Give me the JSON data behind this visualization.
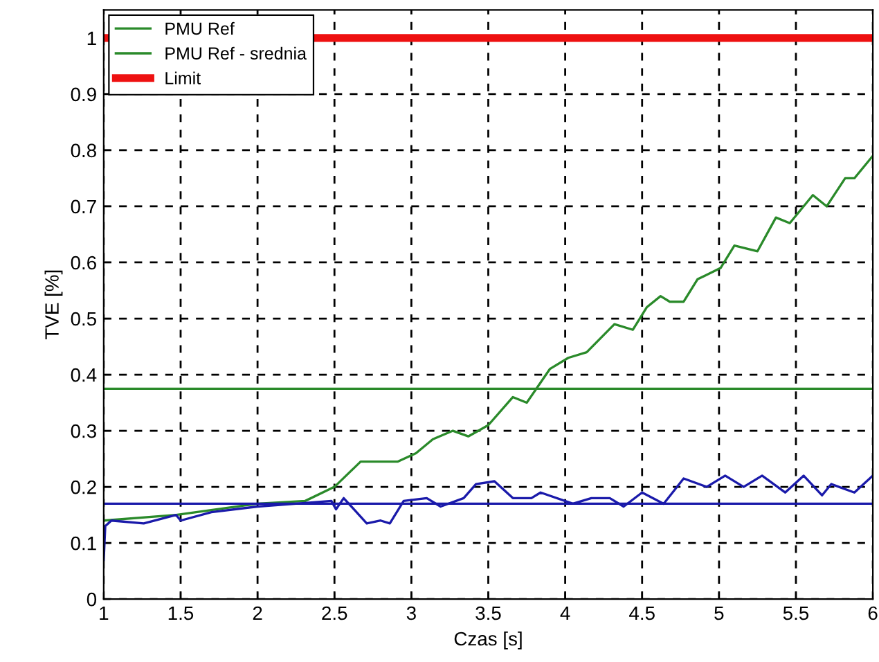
{
  "chart_data": {
    "type": "line",
    "xlabel": "Czas [s]",
    "ylabel": "TVE [%]",
    "xlim": [
      1,
      6
    ],
    "ylim": [
      0,
      1.05
    ],
    "xticks": [
      1,
      1.5,
      2,
      2.5,
      3,
      3.5,
      4,
      4.5,
      5,
      5.5,
      6
    ],
    "yticks": [
      0,
      0.1,
      0.2,
      0.3,
      0.4,
      0.5,
      0.6,
      0.7,
      0.8,
      0.9,
      1
    ],
    "grid": true,
    "legend": "top left",
    "line_style": "solid",
    "marker": "none",
    "series": [
      {
        "name": "PMU Ref",
        "color": "#2a8a2a",
        "x": [
          1.0,
          1.47,
          2.0,
          2.31,
          2.5,
          2.67,
          2.91,
          3.03,
          3.14,
          3.27,
          3.37,
          3.5,
          3.66,
          3.75,
          3.9,
          4.02,
          4.14,
          4.32,
          4.44,
          4.53,
          4.62,
          4.68,
          4.77,
          4.86,
          5.01,
          5.1,
          5.25,
          5.37,
          5.46,
          5.61,
          5.7,
          5.82,
          5.88,
          6.0
        ],
        "values": [
          0.14,
          0.15,
          0.17,
          0.175,
          0.2,
          0.245,
          0.245,
          0.26,
          0.285,
          0.3,
          0.29,
          0.31,
          0.36,
          0.35,
          0.41,
          0.43,
          0.44,
          0.49,
          0.48,
          0.52,
          0.54,
          0.53,
          0.53,
          0.57,
          0.59,
          0.63,
          0.62,
          0.68,
          0.67,
          0.72,
          0.7,
          0.75,
          0.75,
          0.79
        ]
      },
      {
        "name": "PMU Ref - srednia",
        "color": "#2a8a2a",
        "x": [
          1,
          6
        ],
        "values": [
          0.375,
          0.375
        ]
      },
      {
        "color": "#1a1aaa",
        "x": [
          1.0,
          1.01,
          1.05,
          1.26,
          1.47,
          1.5,
          1.7,
          2.0,
          2.25,
          2.48,
          2.51,
          2.56,
          2.71,
          2.8,
          2.86,
          2.95,
          3.1,
          3.19,
          3.34,
          3.42,
          3.54,
          3.66,
          3.78,
          3.84,
          4.05,
          4.17,
          4.29,
          4.38,
          4.5,
          4.64,
          4.77,
          4.92,
          5.04,
          5.16,
          5.28,
          5.43,
          5.55,
          5.67,
          5.73,
          5.88,
          6.0
        ],
        "values": [
          0.07,
          0.13,
          0.14,
          0.135,
          0.15,
          0.14,
          0.155,
          0.165,
          0.17,
          0.175,
          0.16,
          0.18,
          0.135,
          0.14,
          0.135,
          0.175,
          0.18,
          0.165,
          0.18,
          0.205,
          0.21,
          0.18,
          0.18,
          0.19,
          0.17,
          0.18,
          0.18,
          0.165,
          0.19,
          0.17,
          0.215,
          0.2,
          0.22,
          0.2,
          0.22,
          0.19,
          0.22,
          0.185,
          0.205,
          0.19,
          0.22
        ]
      },
      {
        "color": "#1a1aaa",
        "x": [
          1,
          6
        ],
        "values": [
          0.17,
          0.17
        ]
      }
    ],
    "ref_lines": [
      {
        "axis": "y",
        "value": 1,
        "label": "Limit",
        "color": "#ee1111",
        "line_style": "solid"
      }
    ]
  }
}
